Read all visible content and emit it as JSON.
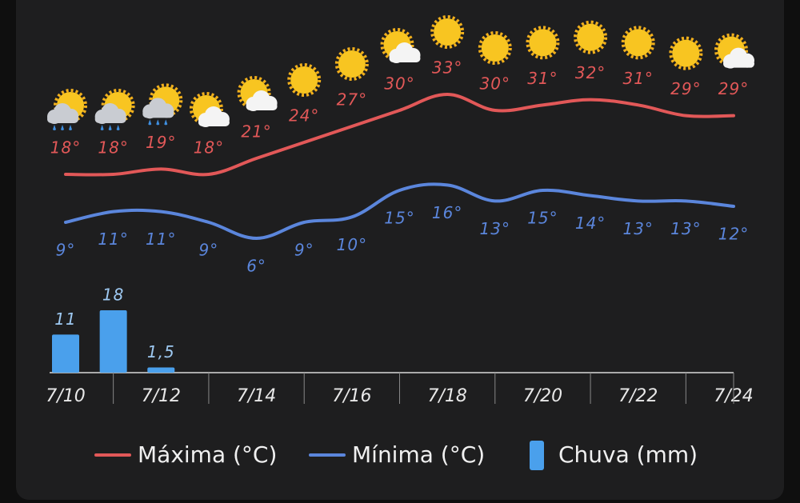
{
  "chart_data": {
    "type": "line",
    "categories": [
      "7/10",
      null,
      "7/12",
      null,
      "7/14",
      null,
      "7/16",
      null,
      "7/18",
      null,
      "7/20",
      null,
      "7/22",
      null,
      "7/24"
    ],
    "series": [
      {
        "name": "Máxima (°C)",
        "type": "line",
        "color": "#e25858",
        "values": [
          18,
          18,
          19,
          18,
          21,
          24,
          27,
          30,
          33,
          30,
          31,
          32,
          31,
          29,
          29
        ],
        "value_labels": [
          "18°",
          "18°",
          "19°",
          "18°",
          "21°",
          "24°",
          "27°",
          "30°",
          "33°",
          "30°",
          "31°",
          "32°",
          "31°",
          "29°",
          "29°"
        ]
      },
      {
        "name": "Mínima (°C)",
        "type": "line",
        "color": "#5b86dc",
        "values": [
          9,
          11,
          11,
          9,
          6,
          9,
          10,
          15,
          16,
          13,
          15,
          14,
          13,
          13,
          12
        ],
        "value_labels": [
          "9°",
          "11°",
          "11°",
          "9°",
          "6°",
          "9°",
          "10°",
          "15°",
          "16°",
          "13°",
          "15°",
          "14°",
          "13°",
          "13°",
          "12°"
        ]
      },
      {
        "name": "Chuva (mm)",
        "type": "bar",
        "color": "#4aa0ec",
        "values": [
          11,
          18,
          1.5,
          null,
          null,
          null,
          null,
          null,
          null,
          null,
          null,
          null,
          null,
          null,
          null
        ],
        "value_labels": [
          "11",
          "18",
          "1,5",
          null,
          null,
          null,
          null,
          null,
          null,
          null,
          null,
          null,
          null,
          null,
          null
        ]
      }
    ]
  }
}
